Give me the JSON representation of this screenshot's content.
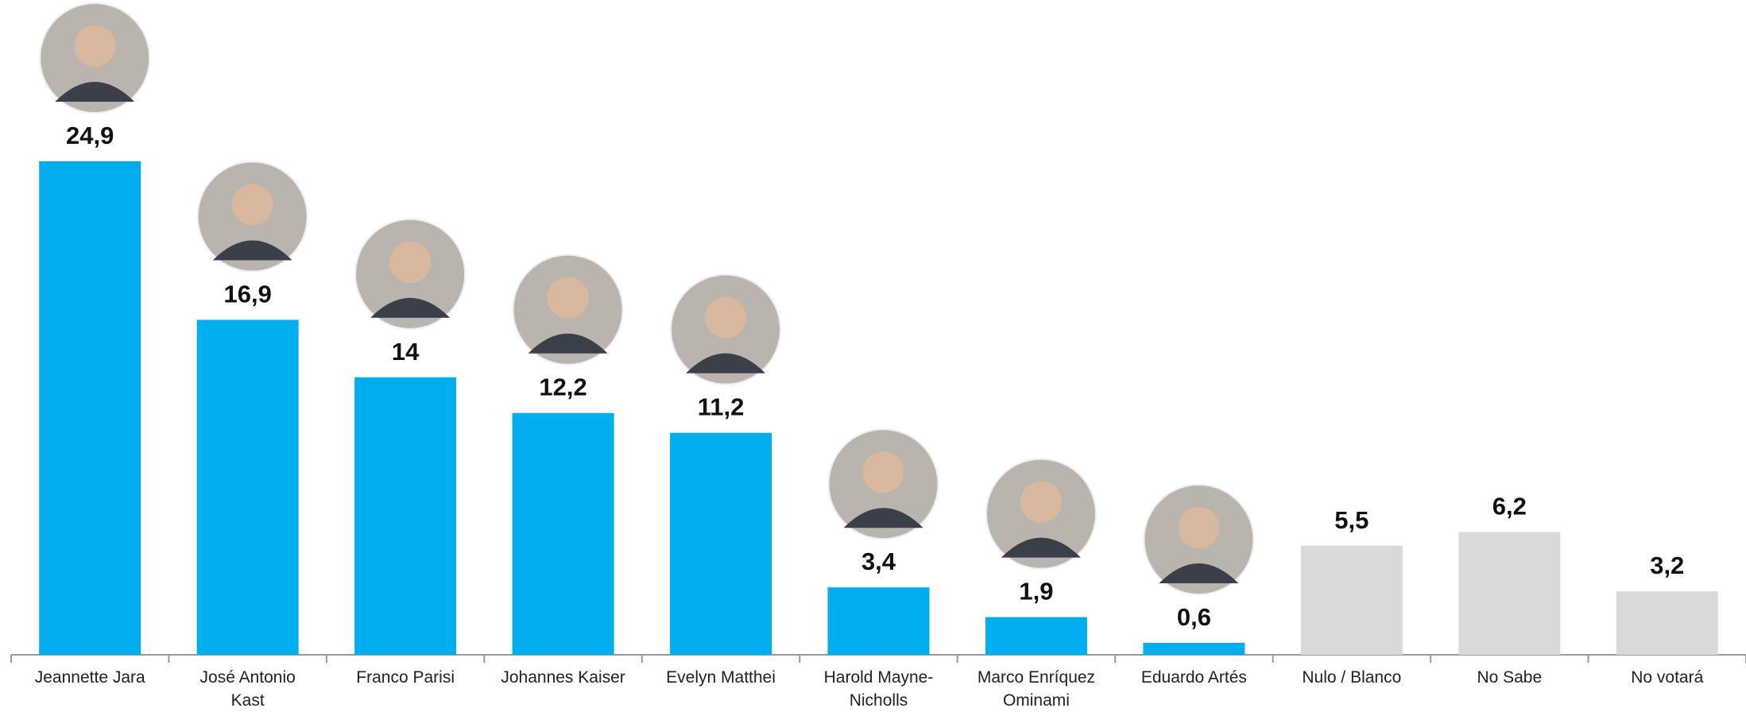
{
  "chart_data": {
    "type": "bar",
    "categories": [
      "Jeannette Jara",
      "José Antonio Kast",
      "Franco Parisi",
      "Johannes Kaiser",
      "Evelyn Matthei",
      "Harold Mayne-Nicholls",
      "Marco Enríquez Ominami",
      "Eduardo Artés",
      "Nulo / Blanco",
      "No Sabe",
      "No votará"
    ],
    "values": [
      24.9,
      16.9,
      14,
      12.2,
      11.2,
      3.4,
      1.9,
      0.6,
      5.5,
      6.2,
      3.2
    ],
    "value_labels": [
      "24,9",
      "16,9",
      "14",
      "12,2",
      "11,2",
      "3,4",
      "1,9",
      "0,6",
      "5,5",
      "6,2",
      "3,2"
    ],
    "colors": [
      "#00aeef",
      "#00aeef",
      "#00aeef",
      "#00aeef",
      "#00aeef",
      "#00aeef",
      "#00aeef",
      "#00aeef",
      "#d9d9d9",
      "#d9d9d9",
      "#d9d9d9"
    ]
  }
}
